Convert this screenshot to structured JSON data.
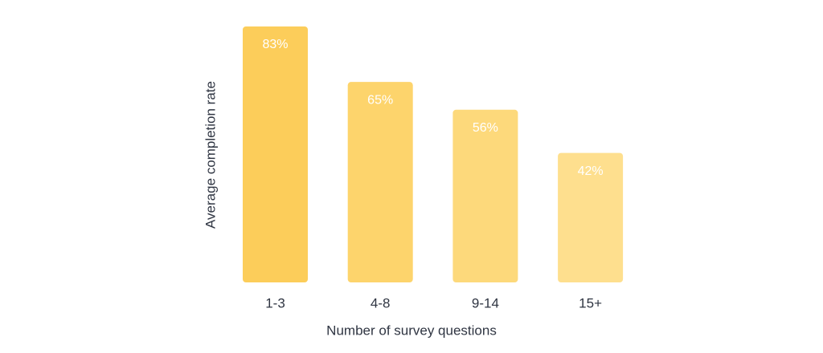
{
  "chart_data": {
    "type": "bar",
    "x_label": "Number of survey questions",
    "y_label": "Average completion rate",
    "categories": [
      "1-3",
      "4-8",
      "9-14",
      "15+"
    ],
    "values": [
      83,
      65,
      56,
      42
    ],
    "value_labels": [
      "83%",
      "65%",
      "56%",
      "42%"
    ],
    "colors": [
      "#fccd5a",
      "#fdd46c",
      "#fdd97b",
      "#fedf8e"
    ]
  }
}
